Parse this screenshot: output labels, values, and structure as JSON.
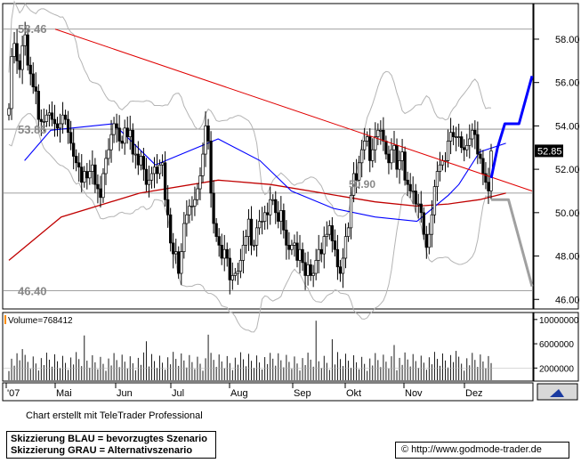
{
  "chart_data": {
    "type": "candlestick",
    "instrument_line": "",
    "y_axis": {
      "range": [
        45.6,
        59.6
      ],
      "ticks": [
        46,
        48,
        50,
        52,
        54,
        56,
        58
      ],
      "tick_labels": [
        "46.00",
        "48.00",
        "50.00",
        "52.00",
        "54.00",
        "56.00",
        "58.00"
      ]
    },
    "x_axis": {
      "labels": [
        "'07",
        "Mai",
        "Jun",
        "Jul",
        "Aug",
        "Sep",
        "Okt",
        "Nov",
        "Dez"
      ]
    },
    "price_labels": {
      "high": "58.46",
      "low": "46.40",
      "resistance": "53.85",
      "mid": "50.90",
      "last": "52.85"
    },
    "horizontal_levels": [
      58.46,
      53.85,
      50.9,
      46.4
    ],
    "trendline": {
      "from": [
        0,
        58.46
      ],
      "to": [
        1,
        51.0
      ],
      "color": "#e00000"
    },
    "scenarios": {
      "blue": {
        "color": "#0000ff",
        "points": [
          [
            0.922,
            51.6
          ],
          [
            0.934,
            53.0
          ],
          [
            0.948,
            54.1
          ],
          [
            0.975,
            54.1
          ],
          [
            1.0,
            56.3
          ]
        ]
      },
      "grey": {
        "color": "#a0a0a0",
        "points": [
          [
            0.922,
            50.6
          ],
          [
            0.955,
            50.6
          ],
          [
            1.0,
            46.6
          ]
        ]
      }
    },
    "candle_count": 180,
    "closes": [
      54.8,
      57.2,
      57.8,
      57.0,
      56.6,
      57.7,
      58.2,
      56.8,
      56.4,
      55.8,
      55.6,
      54.3,
      54.2,
      54.2,
      54.5,
      54.6,
      54.3,
      54.1,
      53.9,
      54.1,
      54.5,
      54.3,
      53.7,
      53.2,
      52.6,
      52.3,
      52.1,
      51.4,
      51.9,
      51.6,
      51.9,
      52.2,
      51.3,
      51.1,
      50.7,
      51.8,
      52.5,
      52.9,
      53.6,
      54.1,
      53.9,
      53.3,
      53.2,
      53.9,
      53.5,
      53.8,
      52.7,
      52.7,
      52.2,
      52.6,
      52.0,
      51.3,
      51.5,
      51.8,
      52.1,
      51.8,
      52.2,
      52.3,
      50.6,
      49.9,
      48.6,
      48.1,
      48.2,
      47.2,
      48.2,
      49.5,
      49.9,
      50.3,
      50.3,
      50.6,
      51.1,
      51.7,
      52.7,
      54.0,
      53.3,
      50.9,
      49.5,
      48.9,
      48.5,
      47.9,
      48.3,
      47.9,
      46.9,
      47.1,
      47.2,
      47.3,
      47.8,
      48.5,
      48.9,
      49.7,
      48.5,
      48.5,
      49.3,
      49.6,
      49.6,
      50.0,
      49.9,
      50.6,
      50.6,
      50.0,
      49.6,
      50.1,
      49.2,
      48.5,
      48.3,
      48.5,
      48.6,
      47.8,
      48.3,
      47.7,
      47.1,
      47.6,
      47.1,
      47.2,
      47.8,
      48.3,
      48.1,
      48.9,
      49.0,
      49.4,
      48.7,
      48.3,
      47.5,
      47.2,
      47.9,
      48.9,
      49.3,
      50.8,
      51.8,
      51.5,
      52.3,
      52.9,
      53.3,
      53.5,
      52.4,
      52.9,
      53.5,
      53.8,
      53.8,
      53.3,
      52.7,
      52.3,
      52.9,
      53.1,
      52.0,
      52.4,
      52.8,
      51.5,
      51.3,
      51.0,
      51.0,
      50.4,
      50.4,
      50.0,
      49.0,
      48.4,
      49.0,
      49.9,
      51.2,
      51.9,
      52.2,
      52.4,
      52.4,
      53.3,
      53.7,
      53.5,
      53.5,
      53.5,
      53.0,
      52.9,
      53.1,
      53.4,
      53.8,
      53.6,
      52.7,
      52.5,
      51.8,
      51.4,
      51.0,
      52.85
    ],
    "sma_fast": {
      "color": "#0000ff",
      "points": [
        [
          0.03,
          52.4
        ],
        [
          0.08,
          53.8
        ],
        [
          0.2,
          54.1
        ],
        [
          0.28,
          52.2
        ],
        [
          0.4,
          53.4
        ],
        [
          0.48,
          52.4
        ],
        [
          0.54,
          51.0
        ],
        [
          0.62,
          50.2
        ],
        [
          0.7,
          49.8
        ],
        [
          0.78,
          49.6
        ],
        [
          0.84,
          50.8
        ],
        [
          0.86,
          51.3
        ],
        [
          0.9,
          52.8
        ],
        [
          0.95,
          53.2
        ]
      ]
    },
    "sma_slow": {
      "color": "#c00000",
      "points": [
        [
          0.0,
          47.8
        ],
        [
          0.1,
          49.8
        ],
        [
          0.25,
          50.9
        ],
        [
          0.4,
          51.5
        ],
        [
          0.5,
          51.3
        ],
        [
          0.6,
          50.9
        ],
        [
          0.7,
          50.5
        ],
        [
          0.78,
          50.3
        ],
        [
          0.84,
          50.4
        ],
        [
          0.9,
          50.6
        ],
        [
          0.95,
          50.9
        ]
      ]
    },
    "volume": {
      "label": "Volume=768412",
      "ticks": [
        2000000,
        6000000,
        10000000
      ],
      "tick_labels": [
        "2000000",
        "6000000",
        "10000000"
      ]
    },
    "source_credit": "Chart erstellt mit TeleTrader Professional",
    "legend": {
      "blue_line": "Skizzierung BLAU = bevorzugtes Szenario",
      "grey_line": "Skizzierung GRAU = Alternativszenario"
    },
    "url": "http://www.godmode-trader.de"
  },
  "colors": {
    "candle": "#000000",
    "bollinger": "#b4b4b4",
    "grid": "#808080",
    "background": "#ffffff"
  }
}
